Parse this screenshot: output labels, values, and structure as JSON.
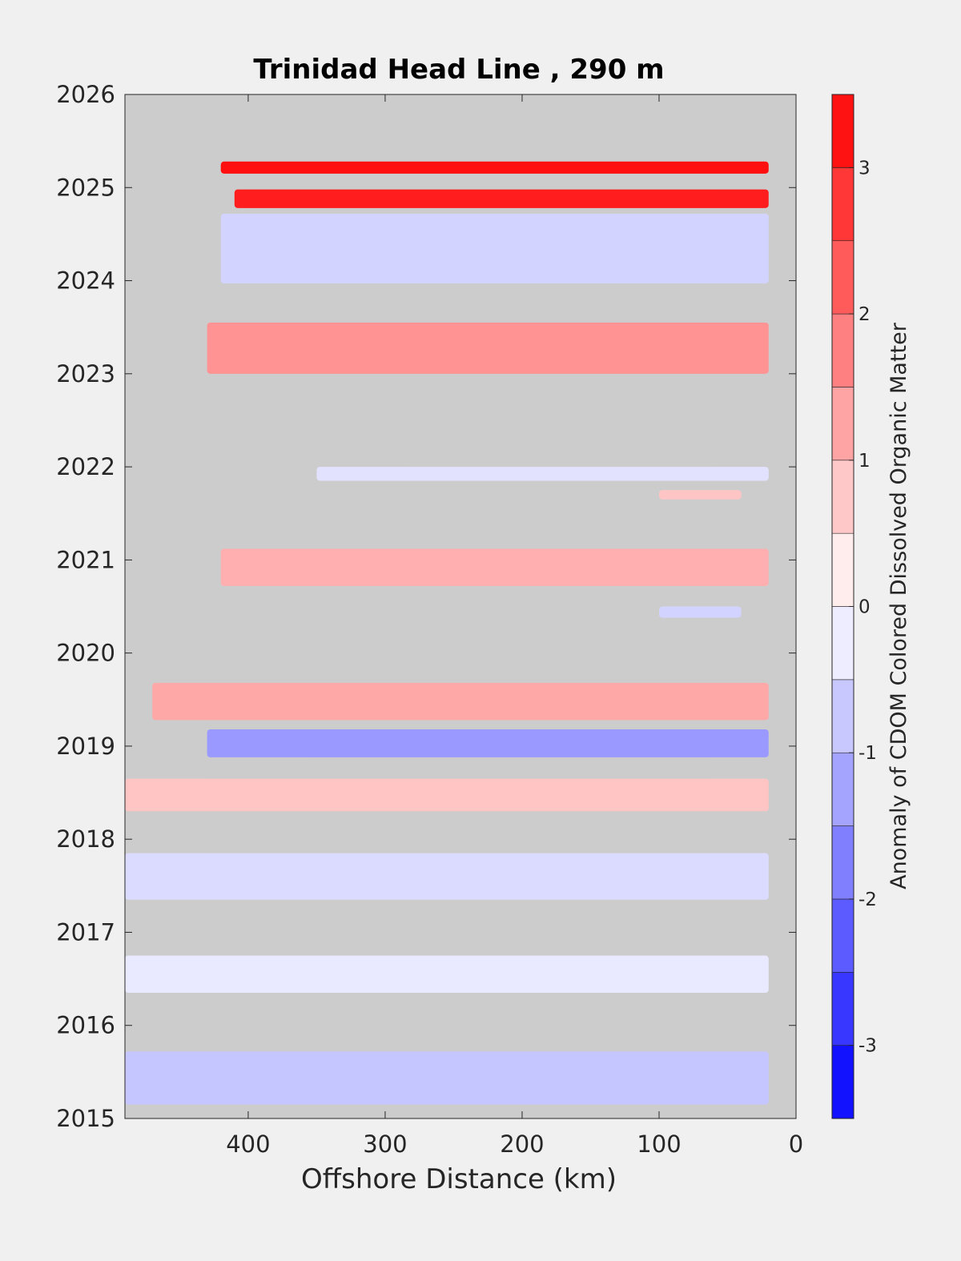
{
  "chart_data": {
    "type": "heatmap",
    "title": "Trinidad Head Line , 290 m",
    "xlabel": "Offshore Distance (km)",
    "ylabel": "",
    "colorbar_label": "Anomaly of CDOM Colored Dissolved Organic Matter",
    "xlim": [
      490,
      0
    ],
    "x_reversed": true,
    "ylim": [
      2015,
      2026
    ],
    "xticks": [
      400,
      300,
      200,
      100,
      0
    ],
    "yticks": [
      2015,
      2016,
      2017,
      2018,
      2019,
      2020,
      2021,
      2022,
      2023,
      2024,
      2025,
      2026
    ],
    "clim": [
      -3.5,
      3.5
    ],
    "cticks": [
      -3,
      -2,
      -1,
      0,
      1,
      2,
      3
    ],
    "colormap": "blue-white-red diverging, 14 levels of 0.5",
    "nodata_color": "#cccccc",
    "grid": false,
    "anomaly_bands": [
      {
        "x_start": 420,
        "x_end": 20,
        "y_start": 2025.15,
        "y_end": 2025.28,
        "value": 3.3
      },
      {
        "x_start": 410,
        "x_end": 20,
        "y_start": 2024.78,
        "y_end": 2024.98,
        "value": 3.1
      },
      {
        "x_start": 420,
        "x_end": 20,
        "y_start": 2023.97,
        "y_end": 2024.72,
        "value": -0.6
      },
      {
        "x_start": 430,
        "x_end": 20,
        "y_start": 2023.0,
        "y_end": 2023.55,
        "value": 1.5
      },
      {
        "x_start": 350,
        "x_end": 20,
        "y_start": 2021.85,
        "y_end": 2022.0,
        "value": -0.4
      },
      {
        "x_start": 100,
        "x_end": 40,
        "y_start": 2021.65,
        "y_end": 2021.75,
        "value": 0.8
      },
      {
        "x_start": 420,
        "x_end": 20,
        "y_start": 2020.72,
        "y_end": 2021.12,
        "value": 1.1
      },
      {
        "x_start": 100,
        "x_end": 40,
        "y_start": 2020.38,
        "y_end": 2020.5,
        "value": -0.6
      },
      {
        "x_start": 470,
        "x_end": 20,
        "y_start": 2019.28,
        "y_end": 2019.68,
        "value": 1.2
      },
      {
        "x_start": 430,
        "x_end": 20,
        "y_start": 2018.88,
        "y_end": 2019.18,
        "value": -1.4
      },
      {
        "x_start": 490,
        "x_end": 20,
        "y_start": 2018.3,
        "y_end": 2018.65,
        "value": 0.8
      },
      {
        "x_start": 490,
        "x_end": 20,
        "y_start": 2017.35,
        "y_end": 2017.85,
        "value": -0.5
      },
      {
        "x_start": 490,
        "x_end": 20,
        "y_start": 2016.35,
        "y_end": 2016.75,
        "value": -0.3
      },
      {
        "x_start": 490,
        "x_end": 20,
        "y_start": 2015.15,
        "y_end": 2015.72,
        "value": -0.8
      }
    ]
  }
}
